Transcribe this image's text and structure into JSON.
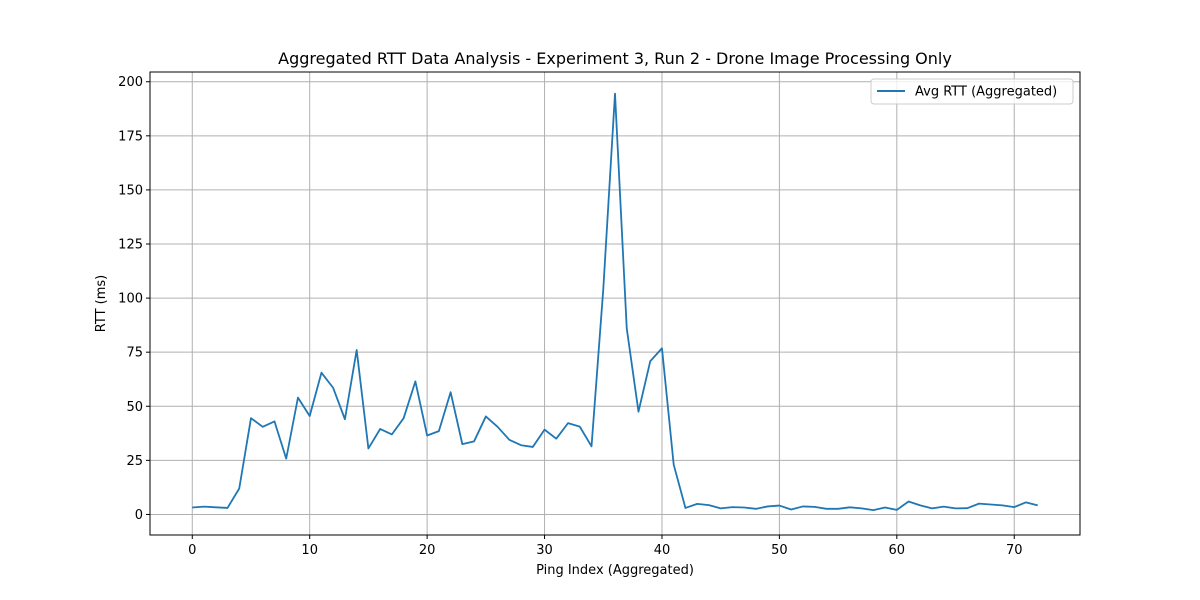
{
  "chart_data": {
    "type": "line",
    "title": "Aggregated RTT Data Analysis - Experiment 3, Run 2 - Drone Image Processing Only",
    "xlabel": "Ping Index (Aggregated)",
    "ylabel": "RTT (ms)",
    "xlim": [
      -3.6,
      75.6
    ],
    "ylim": [
      -9.5,
      204.5
    ],
    "xticks": [
      0,
      10,
      20,
      30,
      40,
      50,
      60,
      70
    ],
    "yticks": [
      0,
      25,
      50,
      75,
      100,
      125,
      150,
      175,
      200
    ],
    "grid": true,
    "legend_position": "top-right",
    "series": [
      {
        "name": "Avg RTT (Aggregated)",
        "color": "#1f77b4",
        "x": [
          0,
          1,
          2,
          3,
          4,
          5,
          6,
          7,
          8,
          9,
          10,
          11,
          12,
          13,
          14,
          15,
          16,
          17,
          18,
          19,
          20,
          21,
          22,
          23,
          24,
          25,
          26,
          27,
          28,
          29,
          30,
          31,
          32,
          33,
          34,
          35,
          36,
          37,
          38,
          39,
          40,
          41,
          42,
          43,
          44,
          45,
          46,
          47,
          48,
          49,
          50,
          51,
          52,
          53,
          54,
          55,
          56,
          57,
          58,
          59,
          60,
          61,
          62,
          63,
          64,
          65,
          66,
          67,
          68,
          69,
          70,
          71,
          72
        ],
        "values": [
          3.2,
          3.6,
          3.3,
          3.0,
          12.0,
          44.5,
          40.5,
          43.0,
          25.8,
          54.0,
          45.5,
          65.5,
          58.5,
          44.0,
          76.0,
          30.5,
          39.5,
          37.0,
          44.5,
          61.5,
          36.5,
          38.5,
          56.5,
          32.5,
          33.8,
          45.3,
          40.5,
          34.5,
          32.0,
          31.2,
          39.2,
          35.0,
          42.2,
          40.6,
          31.5,
          104.0,
          194.5,
          86.0,
          47.5,
          70.8,
          76.8,
          23.0,
          3.0,
          4.9,
          4.3,
          2.8,
          3.4,
          3.2,
          2.6,
          3.7,
          4.1,
          2.3,
          3.7,
          3.5,
          2.6,
          2.6,
          3.3,
          2.8,
          2.0,
          3.2,
          2.1,
          6.0,
          4.2,
          2.8,
          3.6,
          2.8,
          2.9,
          5.0,
          4.6,
          4.2,
          3.4,
          5.6,
          4.2
        ]
      }
    ]
  }
}
